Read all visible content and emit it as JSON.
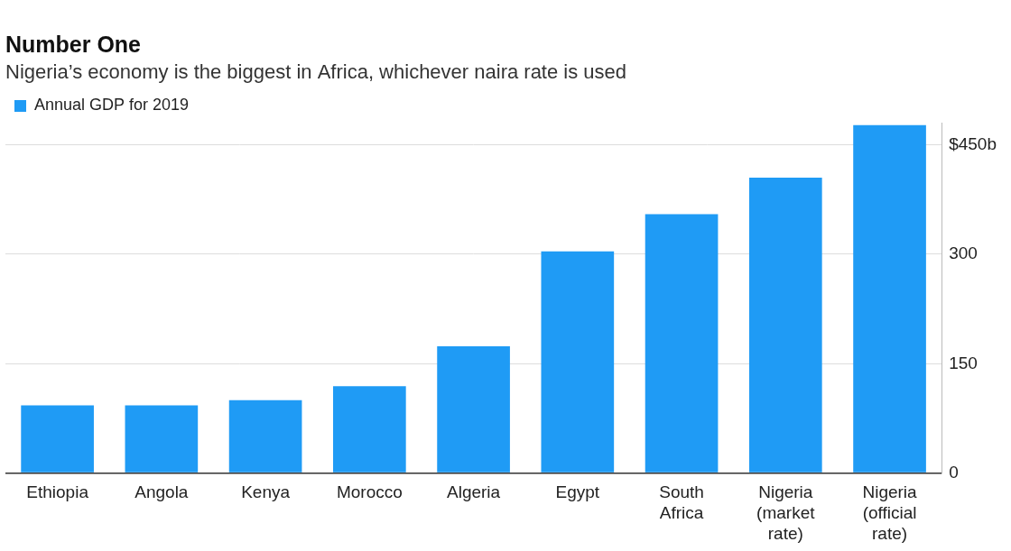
{
  "chart_data": {
    "type": "bar",
    "title": "Number One",
    "subtitle": "Nigeria’s economy is the biggest in Africa, whichever naira rate is used",
    "categories": [
      "Ethiopia",
      "Angola",
      "Kenya",
      "Morocco",
      "Algeria",
      "Egypt",
      "South Africa",
      "Nigeria (market rate)",
      "Nigeria (official rate)"
    ],
    "series": [
      {
        "name": "Annual GDP for 2019",
        "color": "#1f9bf5",
        "values": [
          93,
          93,
          100,
          119,
          174,
          304,
          355,
          405,
          477
        ]
      }
    ],
    "ylim": [
      0,
      480
    ],
    "yticks": [
      0,
      150,
      300,
      {
        "value": 450,
        "label": "$450b"
      }
    ],
    "grid": true,
    "legend": "top-left"
  }
}
